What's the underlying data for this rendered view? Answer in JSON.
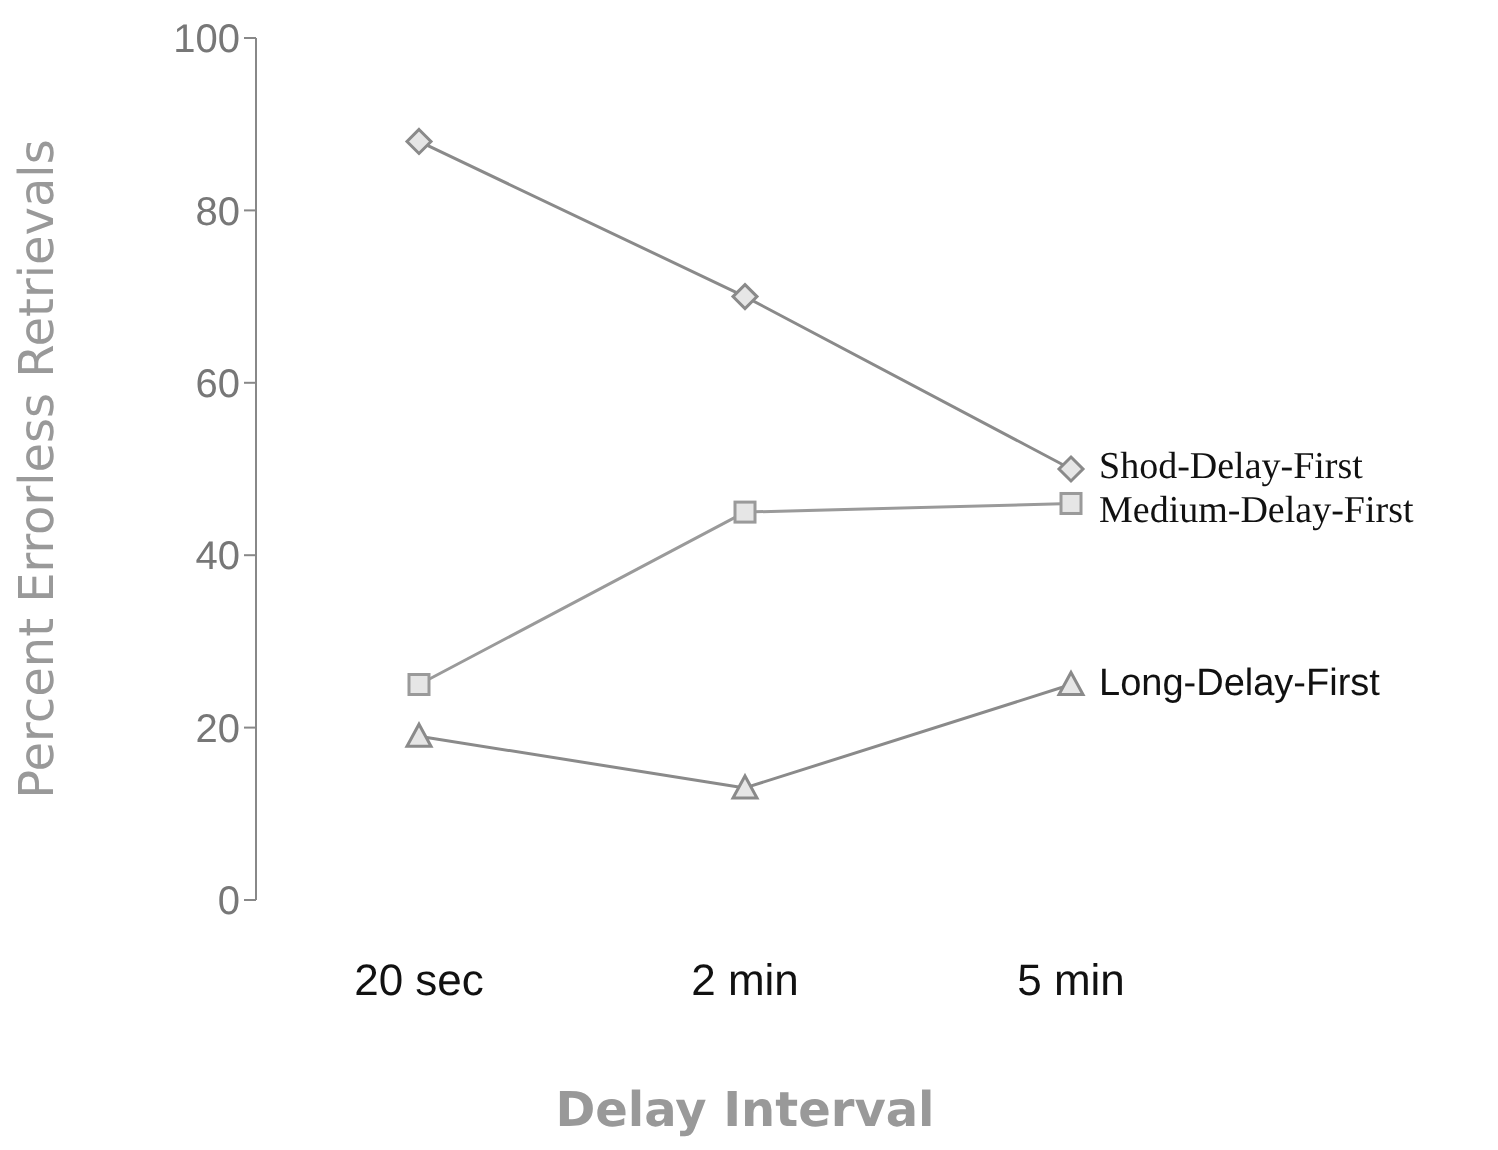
{
  "chart_data": {
    "type": "line",
    "xlabel": "Delay Interval",
    "ylabel": "Percent Errorless Retrievals",
    "categories": [
      "20 sec",
      "2 min",
      "5 min"
    ],
    "series": [
      {
        "name": "Shod-Delay-First",
        "color": "#8a8a8a",
        "marker": "diamond",
        "values": [
          88,
          70,
          50
        ]
      },
      {
        "name": "Medium-Delay-First",
        "color": "#9a9a9a",
        "marker": "square",
        "values": [
          25,
          45,
          46
        ]
      },
      {
        "name": "Long-Delay-First",
        "color": "#8a8a8a",
        "marker": "triangle",
        "values": [
          19,
          13,
          25
        ]
      }
    ],
    "ylim": [
      0,
      100
    ],
    "yticks": [
      0,
      20,
      40,
      60,
      80,
      100
    ]
  }
}
